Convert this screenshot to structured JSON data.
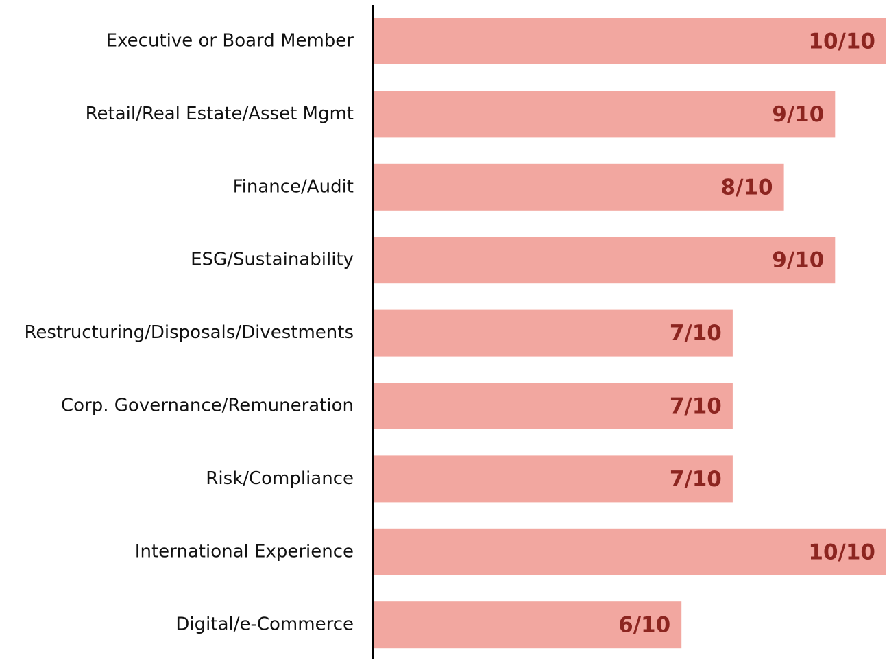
{
  "chart_data": {
    "type": "hbar",
    "categories": [
      "Executive or Board Member",
      "Retail/Real Estate/Asset Mgmt",
      "Finance/Audit",
      "ESG/Sustainability",
      "Restructuring/Disposals/Divestments",
      "Corp. Governance/Remuneration",
      "Risk/Compliance",
      "International Experience",
      "Digital/e-Commerce"
    ],
    "values": [
      10,
      9,
      8,
      9,
      7,
      7,
      7,
      10,
      6
    ],
    "value_labels": [
      "10/10",
      "9/10",
      "8/10",
      "9/10",
      "7/10",
      "7/10",
      "7/10",
      "10/10",
      "6/10"
    ],
    "color": "#f2a7a0",
    "xlim": [
      0,
      10
    ]
  }
}
